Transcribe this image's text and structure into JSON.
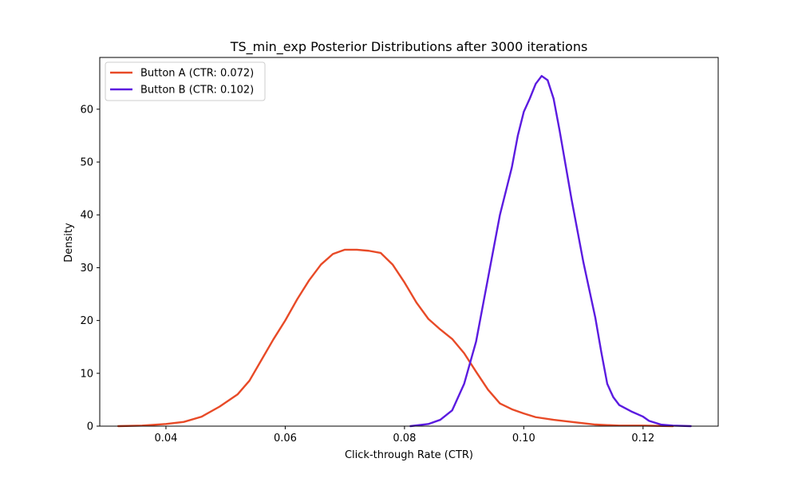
{
  "chart_data": {
    "type": "line",
    "title": "TS_min_exp Posterior Distributions after 3000 iterations",
    "xlabel": "Click-through Rate (CTR)",
    "ylabel": "Density",
    "xlim": [
      0.0289,
      0.1326
    ],
    "ylim": [
      0,
      69.8
    ],
    "xticks": [
      {
        "value": 0.04,
        "label": "0.04"
      },
      {
        "value": 0.06,
        "label": "0.06"
      },
      {
        "value": 0.08,
        "label": "0.08"
      },
      {
        "value": 0.1,
        "label": "0.10"
      },
      {
        "value": 0.12,
        "label": "0.12"
      }
    ],
    "yticks": [
      {
        "value": 0,
        "label": "0"
      },
      {
        "value": 10,
        "label": "10"
      },
      {
        "value": 20,
        "label": "20"
      },
      {
        "value": 30,
        "label": "30"
      },
      {
        "value": 40,
        "label": "40"
      },
      {
        "value": 50,
        "label": "50"
      },
      {
        "value": 60,
        "label": "60"
      }
    ],
    "grid": false,
    "legend_position": "top-left",
    "series": [
      {
        "name": "Button A (CTR: 0.072)",
        "color": "#e84a27",
        "points": [
          [
            0.032,
            0.0
          ],
          [
            0.036,
            0.1
          ],
          [
            0.04,
            0.4
          ],
          [
            0.043,
            0.8
          ],
          [
            0.046,
            1.8
          ],
          [
            0.049,
            3.7
          ],
          [
            0.052,
            6.0
          ],
          [
            0.054,
            8.6
          ],
          [
            0.056,
            12.5
          ],
          [
            0.058,
            16.4
          ],
          [
            0.06,
            20.0
          ],
          [
            0.062,
            24.0
          ],
          [
            0.064,
            27.6
          ],
          [
            0.066,
            30.6
          ],
          [
            0.068,
            32.6
          ],
          [
            0.07,
            33.4
          ],
          [
            0.072,
            33.4
          ],
          [
            0.074,
            33.2
          ],
          [
            0.076,
            32.8
          ],
          [
            0.078,
            30.6
          ],
          [
            0.08,
            27.2
          ],
          [
            0.082,
            23.4
          ],
          [
            0.084,
            20.3
          ],
          [
            0.086,
            18.3
          ],
          [
            0.088,
            16.5
          ],
          [
            0.09,
            13.8
          ],
          [
            0.092,
            10.3
          ],
          [
            0.094,
            6.9
          ],
          [
            0.096,
            4.3
          ],
          [
            0.098,
            3.2
          ],
          [
            0.1,
            2.4
          ],
          [
            0.102,
            1.7
          ],
          [
            0.105,
            1.2
          ],
          [
            0.108,
            0.8
          ],
          [
            0.112,
            0.3
          ],
          [
            0.116,
            0.1
          ],
          [
            0.12,
            0.1
          ],
          [
            0.125,
            0.0
          ]
        ]
      },
      {
        "name": "Button B (CTR: 0.102)",
        "color": "#5b1be0",
        "points": [
          [
            0.081,
            0.0
          ],
          [
            0.084,
            0.4
          ],
          [
            0.086,
            1.2
          ],
          [
            0.088,
            3.0
          ],
          [
            0.09,
            8.0
          ],
          [
            0.092,
            16.0
          ],
          [
            0.094,
            28.0
          ],
          [
            0.096,
            40.0
          ],
          [
            0.098,
            49.0
          ],
          [
            0.099,
            55.0
          ],
          [
            0.1,
            59.5
          ],
          [
            0.101,
            62.0
          ],
          [
            0.102,
            64.8
          ],
          [
            0.103,
            66.3
          ],
          [
            0.104,
            65.5
          ],
          [
            0.105,
            62.0
          ],
          [
            0.106,
            56.0
          ],
          [
            0.108,
            43.0
          ],
          [
            0.11,
            31.0
          ],
          [
            0.112,
            20.5
          ],
          [
            0.113,
            14.0
          ],
          [
            0.114,
            8.0
          ],
          [
            0.115,
            5.5
          ],
          [
            0.116,
            4.0
          ],
          [
            0.118,
            2.8
          ],
          [
            0.12,
            1.8
          ],
          [
            0.121,
            1.0
          ],
          [
            0.123,
            0.3
          ],
          [
            0.125,
            0.1
          ],
          [
            0.128,
            0.0
          ]
        ]
      }
    ]
  }
}
